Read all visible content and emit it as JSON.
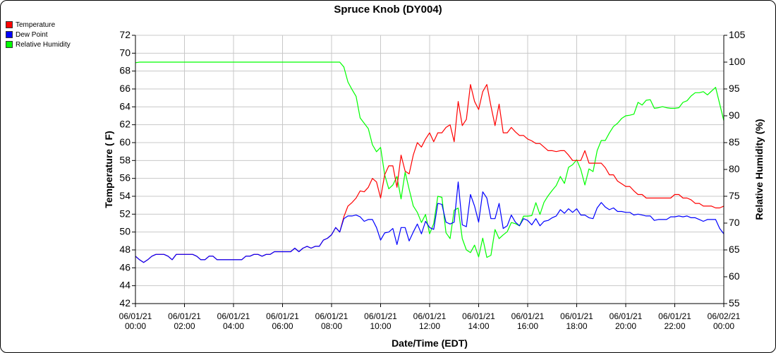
{
  "title": "Spruce Knob (DY004)",
  "legend": [
    {
      "label": "Temperature",
      "color": "#ff0000"
    },
    {
      "label": "Dew Point",
      "color": "#0000ff"
    },
    {
      "label": "Relative Humidity",
      "color": "#00ff00"
    }
  ],
  "chart_data": {
    "type": "line",
    "title": "Spruce Knob (DY004)",
    "xlabel": "Date/Time (EDT)",
    "ylabel": "Temperature ( F)",
    "y2label": "Relative Humidity (%)",
    "ylim": [
      42,
      72
    ],
    "y2lim": [
      55,
      105
    ],
    "yticks": [
      42,
      44,
      46,
      48,
      50,
      52,
      54,
      56,
      58,
      60,
      62,
      64,
      66,
      68,
      70,
      72
    ],
    "y2ticks": [
      55,
      60,
      65,
      70,
      75,
      80,
      85,
      90,
      95,
      100,
      105
    ],
    "xticks": [
      [
        "06/01/21",
        "00:00"
      ],
      [
        "06/01/21",
        "02:00"
      ],
      [
        "06/01/21",
        "04:00"
      ],
      [
        "06/01/21",
        "06:00"
      ],
      [
        "06/01/21",
        "08:00"
      ],
      [
        "06/01/21",
        "10:00"
      ],
      [
        "06/01/21",
        "12:00"
      ],
      [
        "06/01/21",
        "14:00"
      ],
      [
        "06/01/21",
        "16:00"
      ],
      [
        "06/01/21",
        "18:00"
      ],
      [
        "06/01/21",
        "20:00"
      ],
      [
        "06/01/21",
        "22:00"
      ],
      [
        "06/02/21",
        "00:00"
      ]
    ],
    "grid": true,
    "legend_position": "top-left",
    "x": [
      "00:00",
      "00:10",
      "00:20",
      "00:30",
      "00:40",
      "00:50",
      "01:00",
      "01:10",
      "01:20",
      "01:30",
      "01:40",
      "01:50",
      "02:00",
      "02:10",
      "02:20",
      "02:30",
      "02:40",
      "02:50",
      "03:00",
      "03:10",
      "03:20",
      "03:30",
      "03:40",
      "03:50",
      "04:00",
      "04:10",
      "04:20",
      "04:30",
      "04:40",
      "04:50",
      "05:00",
      "05:10",
      "05:20",
      "05:30",
      "05:40",
      "05:50",
      "06:00",
      "06:10",
      "06:20",
      "06:30",
      "06:40",
      "06:50",
      "07:00",
      "07:10",
      "07:20",
      "07:30",
      "07:40",
      "07:50",
      "08:00",
      "08:10",
      "08:20",
      "08:30",
      "08:40",
      "08:50",
      "09:00",
      "09:10",
      "09:20",
      "09:30",
      "09:40",
      "09:50",
      "10:00",
      "10:10",
      "10:20",
      "10:30",
      "10:40",
      "10:50",
      "11:00",
      "11:10",
      "11:20",
      "11:30",
      "11:40",
      "11:50",
      "12:00",
      "12:10",
      "12:20",
      "12:30",
      "12:40",
      "12:50",
      "13:00",
      "13:10",
      "13:20",
      "13:30",
      "13:40",
      "13:50",
      "14:00",
      "14:10",
      "14:20",
      "14:30",
      "14:40",
      "14:50",
      "15:00",
      "15:10",
      "15:20",
      "15:30",
      "15:40",
      "15:50",
      "16:00",
      "16:10",
      "16:20",
      "16:30",
      "16:40",
      "16:50",
      "17:00",
      "17:10",
      "17:20",
      "17:30",
      "17:40",
      "17:50",
      "18:00",
      "18:10",
      "18:20",
      "18:30",
      "18:40",
      "18:50",
      "19:00",
      "19:10",
      "19:20",
      "19:30",
      "19:40",
      "19:50",
      "20:00",
      "20:10",
      "20:20",
      "20:30",
      "20:40",
      "20:50",
      "21:00",
      "21:10",
      "21:20",
      "21:30",
      "21:40",
      "21:50",
      "22:00",
      "22:10",
      "22:20",
      "22:30",
      "22:40",
      "22:50",
      "23:00",
      "23:10",
      "23:20",
      "23:30",
      "23:40",
      "23:50",
      "24:00"
    ],
    "series": [
      {
        "name": "Temperature",
        "axis": "left",
        "color": "#ff0000",
        "values": [
          47.3,
          46.9,
          46.6,
          46.9,
          47.3,
          47.5,
          47.5,
          47.5,
          47.3,
          46.9,
          47.5,
          47.5,
          47.5,
          47.5,
          47.5,
          47.3,
          46.9,
          46.9,
          47.3,
          47.3,
          46.9,
          46.9,
          46.9,
          46.9,
          46.9,
          46.9,
          46.9,
          47.3,
          47.3,
          47.5,
          47.5,
          47.3,
          47.5,
          47.5,
          47.8,
          47.8,
          47.8,
          47.8,
          47.8,
          48.2,
          47.8,
          48.2,
          48.4,
          48.2,
          48.4,
          48.4,
          49.1,
          49.3,
          49.7,
          50.5,
          50.0,
          51.7,
          52.9,
          53.3,
          53.8,
          54.6,
          54.5,
          55.0,
          56.0,
          55.6,
          53.8,
          56.4,
          57.4,
          57.4,
          55.0,
          58.6,
          56.8,
          56.5,
          58.6,
          60.0,
          59.5,
          60.4,
          61.1,
          60.1,
          61.1,
          61.1,
          61.7,
          62.0,
          60.1,
          64.6,
          61.9,
          62.6,
          66.5,
          64.6,
          63.7,
          65.7,
          66.5,
          64.1,
          61.9,
          64.3,
          61.1,
          61.1,
          61.7,
          61.2,
          60.8,
          60.8,
          60.4,
          60.2,
          59.9,
          59.9,
          59.5,
          59.1,
          59.1,
          59.0,
          59.1,
          59.1,
          58.6,
          58.0,
          58.0,
          58.0,
          59.1,
          57.7,
          57.7,
          57.7,
          57.7,
          57.2,
          56.4,
          56.4,
          55.7,
          55.4,
          55.1,
          55.1,
          54.6,
          54.2,
          54.2,
          53.8,
          53.8,
          53.8,
          53.8,
          53.8,
          53.8,
          53.8,
          54.2,
          54.2,
          53.8,
          53.8,
          53.6,
          53.2,
          53.2,
          52.9,
          52.9,
          52.9,
          52.7,
          52.7,
          52.9
        ]
      },
      {
        "name": "Dew Point",
        "axis": "left",
        "color": "#0000ff",
        "values": [
          47.3,
          46.9,
          46.6,
          46.9,
          47.3,
          47.5,
          47.5,
          47.5,
          47.3,
          46.9,
          47.5,
          47.5,
          47.5,
          47.5,
          47.5,
          47.3,
          46.9,
          46.9,
          47.3,
          47.3,
          46.9,
          46.9,
          46.9,
          46.9,
          46.9,
          46.9,
          46.9,
          47.3,
          47.3,
          47.5,
          47.5,
          47.3,
          47.5,
          47.5,
          47.8,
          47.8,
          47.8,
          47.8,
          47.8,
          48.2,
          47.8,
          48.2,
          48.4,
          48.2,
          48.4,
          48.4,
          49.1,
          49.3,
          49.7,
          50.5,
          50.0,
          51.5,
          51.8,
          51.8,
          51.9,
          51.7,
          51.2,
          51.4,
          51.4,
          50.5,
          49.1,
          49.9,
          50.0,
          50.4,
          48.6,
          50.5,
          50.5,
          49.0,
          50.0,
          50.9,
          49.8,
          51.2,
          50.5,
          50.3,
          53.2,
          53.1,
          51.1,
          50.9,
          51.1,
          55.6,
          50.8,
          50.6,
          54.2,
          52.9,
          51.1,
          54.5,
          53.8,
          51.5,
          51.5,
          53.2,
          50.4,
          50.7,
          51.9,
          51.1,
          50.7,
          51.5,
          51.3,
          50.8,
          51.5,
          50.7,
          51.2,
          51.3,
          51.6,
          51.8,
          52.5,
          52.1,
          52.6,
          52.2,
          52.6,
          51.9,
          51.9,
          51.6,
          51.5,
          52.7,
          53.3,
          52.8,
          52.5,
          52.7,
          52.3,
          52.3,
          52.2,
          52.2,
          51.9,
          52.0,
          51.9,
          51.8,
          51.8,
          51.3,
          51.4,
          51.4,
          51.4,
          51.7,
          51.7,
          51.8,
          51.7,
          51.8,
          51.6,
          51.6,
          51.4,
          51.2,
          51.4,
          51.4,
          51.4,
          50.4,
          49.8
        ]
      },
      {
        "name": "Relative Humidity",
        "axis": "right",
        "color": "#00ff00",
        "values": [
          99.9,
          100,
          100,
          100,
          100,
          100,
          100,
          100,
          100,
          100,
          100,
          100,
          100,
          100,
          100,
          100,
          100,
          100,
          100,
          100,
          100,
          100,
          100,
          100,
          100,
          100,
          100,
          100,
          100,
          100,
          100,
          100,
          100,
          100,
          100,
          100,
          100,
          100,
          100,
          100,
          100,
          100,
          100,
          100,
          100,
          100,
          100,
          100,
          100,
          100,
          100,
          99.1,
          96.3,
          94.9,
          93.6,
          89.6,
          88.6,
          87.6,
          84.6,
          83.3,
          84.1,
          79.0,
          76.4,
          77.1,
          78.7,
          74.5,
          79.5,
          76.3,
          73.2,
          72.0,
          70.1,
          71.6,
          68.0,
          69.9,
          75.0,
          74.8,
          68.2,
          67.1,
          72.4,
          72.8,
          67.1,
          65.0,
          64.5,
          65.9,
          63.7,
          67.2,
          63.6,
          64.0,
          68.8,
          67.1,
          67.8,
          68.4,
          70.1,
          69.9,
          69.5,
          71.3,
          71.3,
          71.4,
          73.8,
          71.6,
          73.9,
          75.1,
          76.1,
          77.0,
          78.7,
          77.4,
          80.4,
          80.9,
          81.8,
          80.0,
          77.1,
          80.1,
          79.6,
          83.5,
          85.4,
          85.4,
          86.8,
          88.0,
          88.6,
          89.5,
          90.0,
          90.1,
          90.3,
          92.5,
          92.0,
          92.9,
          93.0,
          91.4,
          91.5,
          91.7,
          91.5,
          91.4,
          91.4,
          91.5,
          92.5,
          92.8,
          93.7,
          94.3,
          94.3,
          94.5,
          93.9,
          94.6,
          95.3,
          92.2,
          89.1
        ]
      }
    ]
  }
}
